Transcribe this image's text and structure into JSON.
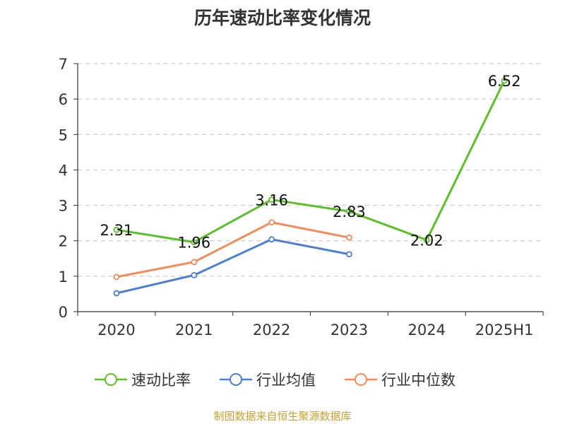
{
  "chart_data": {
    "type": "line",
    "title": "历年速动比率变化情况",
    "categories": [
      "2020",
      "2021",
      "2022",
      "2023",
      "2024",
      "2025H1"
    ],
    "ylim": [
      0,
      7
    ],
    "yticks": [
      0,
      1,
      2,
      3,
      4,
      5,
      6,
      7
    ],
    "grid": true,
    "legend_position": "bottom",
    "series": [
      {
        "name": "速动比率",
        "color": "#5cbf2a",
        "values": [
          2.31,
          1.96,
          3.16,
          2.83,
          2.02,
          6.52
        ],
        "labels": [
          "2.31",
          "1.96",
          "3.16",
          "2.83",
          "2.02",
          "6.52"
        ]
      },
      {
        "name": "行业均值",
        "color": "#4a7fd4",
        "values": [
          0.52,
          1.03,
          2.04,
          1.62,
          null,
          null
        ]
      },
      {
        "name": "行业中位数",
        "color": "#f28b57",
        "values": [
          0.98,
          1.4,
          2.52,
          2.09,
          null,
          null
        ]
      }
    ]
  },
  "source": {
    "text": "制图数据来自恒生聚源数据库",
    "color": "#c8a030"
  }
}
